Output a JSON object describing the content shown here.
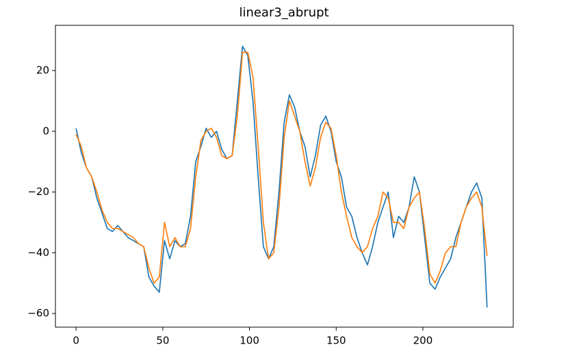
{
  "chart_data": {
    "type": "line",
    "title": "linear3_abrupt",
    "x": [
      0,
      3,
      6,
      9,
      12,
      15,
      18,
      21,
      24,
      27,
      30,
      33,
      36,
      39,
      42,
      45,
      48,
      51,
      54,
      57,
      60,
      63,
      66,
      69,
      72,
      75,
      78,
      81,
      84,
      87,
      90,
      93,
      96,
      99,
      102,
      105,
      108,
      111,
      114,
      117,
      120,
      123,
      126,
      129,
      132,
      135,
      138,
      141,
      144,
      147,
      150,
      153,
      156,
      159,
      162,
      165,
      168,
      171,
      174,
      177,
      180,
      183,
      186,
      189,
      192,
      195,
      198,
      201,
      204,
      207,
      210,
      213,
      216,
      219,
      222,
      225,
      228,
      231,
      234,
      237
    ],
    "series": [
      {
        "color": "#1f77b4",
        "values": [
          1,
          -7,
          -12,
          -15,
          -22,
          -27,
          -32,
          -33,
          -31,
          -33,
          -35,
          -36,
          -37,
          -38,
          -48,
          -51,
          -53,
          -36,
          -42,
          -36,
          -38,
          -37,
          -28,
          -10,
          -5,
          1,
          -2,
          0,
          -6,
          -9,
          -8,
          10,
          28,
          25,
          10,
          -15,
          -38,
          -42,
          -38,
          -20,
          3,
          12,
          8,
          0,
          -5,
          -15,
          -8,
          2,
          5,
          0,
          -10,
          -15,
          -25,
          -28,
          -35,
          -40,
          -44,
          -38,
          -30,
          -25,
          -20,
          -35,
          -28,
          -30,
          -25,
          -15,
          -20,
          -35,
          -50,
          -52,
          -48,
          -45,
          -42,
          -35,
          -30,
          -25,
          -20,
          -17,
          -22,
          -58
        ]
      },
      {
        "color": "#ff7f0e",
        "values": [
          -1,
          -5,
          -12,
          -15,
          -20,
          -26,
          -30,
          -32,
          -32,
          -33,
          -34,
          -35,
          -37,
          -38,
          -45,
          -50,
          -48,
          -30,
          -38,
          -35,
          -38,
          -38,
          -32,
          -15,
          -3,
          0,
          1,
          -2,
          -8,
          -9,
          -8,
          5,
          26,
          26,
          18,
          -5,
          -30,
          -42,
          -40,
          -25,
          -2,
          10,
          5,
          0,
          -10,
          -18,
          -12,
          -2,
          3,
          1,
          -8,
          -20,
          -28,
          -35,
          -38,
          -40,
          -38,
          -32,
          -28,
          -20,
          -22,
          -30,
          -30,
          -32,
          -25,
          -22,
          -20,
          -32,
          -47,
          -50,
          -46,
          -40,
          -38,
          -38,
          -30,
          -25,
          -22,
          -20,
          -25,
          -41
        ]
      }
    ],
    "xlim": [
      -11.9,
      252.1
    ],
    "ylim": [
      -64.5,
      34.9
    ],
    "xticks": [
      0,
      50,
      100,
      150,
      200
    ],
    "yticks": [
      {
        "value": -60,
        "label": "−60"
      },
      {
        "value": -40,
        "label": "−40"
      },
      {
        "value": -20,
        "label": "−20"
      },
      0,
      20
    ]
  }
}
